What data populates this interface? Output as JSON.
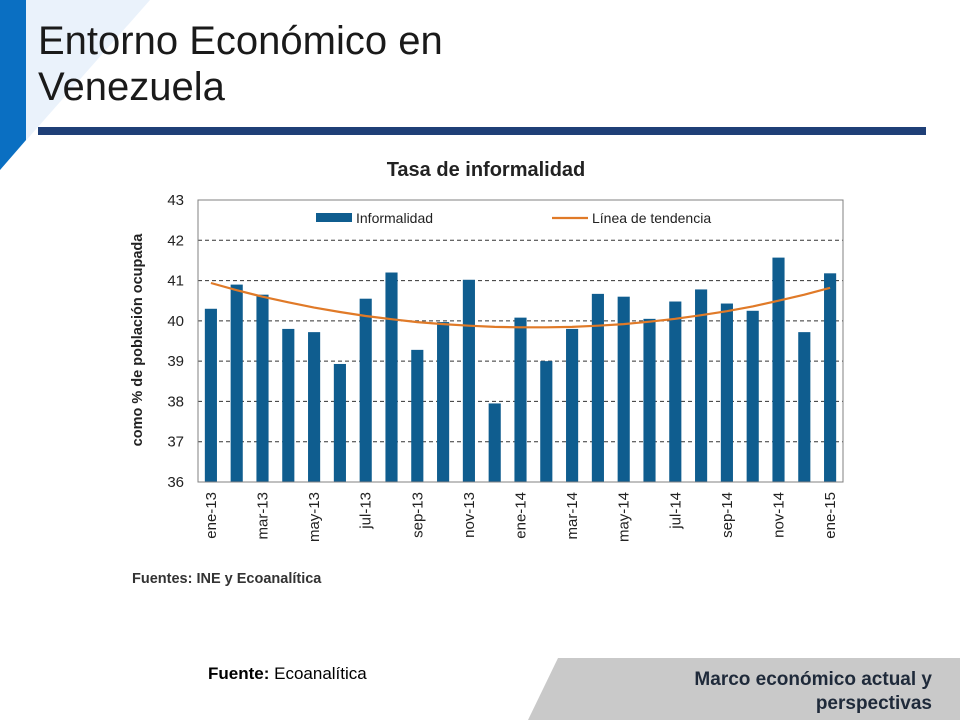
{
  "slide": {
    "title_line1": "Entorno Económico en",
    "title_line2": "Venezuela",
    "source_label": "Fuente:",
    "source_value": "Ecoanalítica",
    "footer": "Marco económico actual y perspectivas"
  },
  "colors": {
    "accent_blue": "#0a6fc2",
    "rule_navy": "#1f3f77",
    "bar_blue": "#0f5d8f",
    "trend_orange": "#e07a28",
    "footer_gray": "#c9c9c9"
  },
  "chart_data": {
    "type": "bar",
    "title": "Tasa de informalidad",
    "ylabel": "como % de población ocupada",
    "ylim": [
      36,
      43
    ],
    "yticks": [
      36,
      37,
      38,
      39,
      40,
      41,
      42,
      43
    ],
    "grid": true,
    "legend_position": "top",
    "categories": [
      "ene-13",
      "feb-13",
      "mar-13",
      "abr-13",
      "may-13",
      "jun-13",
      "jul-13",
      "ago-13",
      "sep-13",
      "oct-13",
      "nov-13",
      "dic-13",
      "ene-14",
      "feb-14",
      "mar-14",
      "abr-14",
      "may-14",
      "jun-14",
      "jul-14",
      "ago-14",
      "sep-14",
      "oct-14",
      "nov-14",
      "dic-14",
      "ene-15"
    ],
    "tick_labels": [
      "ene-13",
      "mar-13",
      "may-13",
      "jul-13",
      "sep-13",
      "nov-13",
      "ene-14",
      "mar-14",
      "may-14",
      "jul-14",
      "sep-14",
      "nov-14",
      "ene-15"
    ],
    "series": [
      {
        "name": "Informalidad",
        "type": "bar",
        "values": [
          40.3,
          40.9,
          40.65,
          39.8,
          39.72,
          38.93,
          40.55,
          41.2,
          39.28,
          39.97,
          41.02,
          37.95,
          40.08,
          39.0,
          39.8,
          40.67,
          40.6,
          40.05,
          40.48,
          40.78,
          40.43,
          40.25,
          41.57,
          39.72,
          41.18
        ]
      },
      {
        "name": "Línea de tendencia",
        "type": "line",
        "values": [
          40.94,
          40.76,
          40.6,
          40.46,
          40.33,
          40.22,
          40.12,
          40.04,
          39.97,
          39.92,
          39.88,
          39.85,
          39.84,
          39.84,
          39.85,
          39.88,
          39.92,
          39.98,
          40.05,
          40.14,
          40.24,
          40.36,
          40.5,
          40.65,
          40.82
        ]
      }
    ],
    "annotation": "Fuentes: INE y Ecoanalítica"
  }
}
